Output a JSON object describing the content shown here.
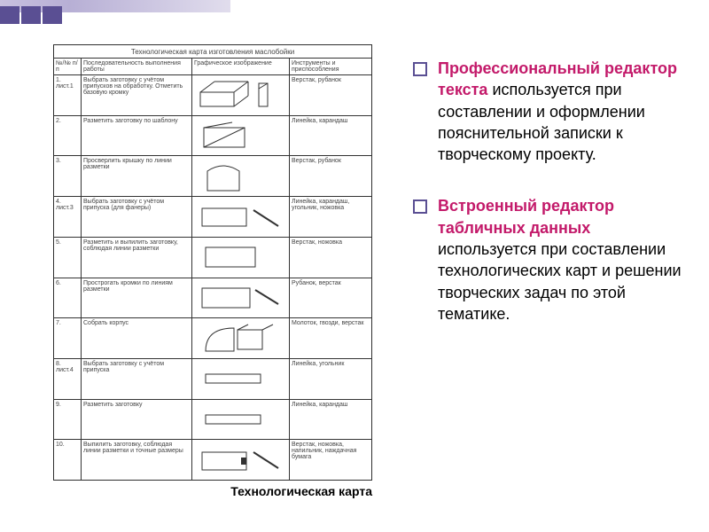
{
  "topbar": {
    "stripe_color": "#c9c2df",
    "block_count": 3,
    "block_color": "#5a4f93"
  },
  "document": {
    "title": "Технологическая карта изготовления маслобойки",
    "header": {
      "num": "№/№ п/п",
      "operation": "Последовательность выполнения работы",
      "graphic": "Графическое изображение",
      "tools": "Инструменты и приспособления"
    },
    "rows": [
      {
        "num": "1.\nлист.1",
        "op": "Выбрать заготовку с учётом припусков на обработку. Отметить базовую кромку",
        "tools": "Верстак, рубанок",
        "gfx": "block-angle"
      },
      {
        "num": "2.",
        "op": "Разметить заготовку по шаблону",
        "tools": "Линейка, карандаш",
        "gfx": "template"
      },
      {
        "num": "3.",
        "op": "Просверлить крышку по линии разметки",
        "tools": "Верстак, рубанок",
        "gfx": "arch"
      },
      {
        "num": "4.\nлист.3",
        "op": "Выбрать заготовку с учётом припуска (для фанеры)",
        "tools": "Линейка, карандаш, угольник, ножовка",
        "gfx": "rect-tool"
      },
      {
        "num": "5.",
        "op": "Разметить и выпилить заготовку, соблюдая линии разметки",
        "tools": "Верстак, ножовка",
        "gfx": "rect"
      },
      {
        "num": "6.",
        "op": "Прострогать кромки по линиям разметки",
        "tools": "Рубанок, верстак",
        "gfx": "rect-tool2"
      },
      {
        "num": "7.",
        "op": "Собрать корпус",
        "tools": "Молоток, гвозди, верстак",
        "gfx": "assembly"
      },
      {
        "num": "8.\nлист.4",
        "op": "Выбрать заготовку с учётом припуска",
        "tools": "Линейка, угольник",
        "gfx": "slim-rect"
      },
      {
        "num": "9.",
        "op": "Разметить заготовку",
        "tools": "Линейка, карандаш",
        "gfx": "slim-rect"
      },
      {
        "num": "10.",
        "op": "Выпилить заготовку, соблюдая линии разметки и точные размеры",
        "tools": "Верстак, ножовка, напильник, наждачная бумага",
        "gfx": "rect-saw"
      }
    ]
  },
  "caption": "Технологическая карта",
  "bullets": [
    {
      "highlight": "Профессиональный редактор текста",
      "rest": " используется при составлении и оформлении пояснительной записки к творческому проекту."
    },
    {
      "highlight": "Встроенный редактор табличных данных",
      "rest": " используется при составлении технологических карт и решении творческих задач по этой тематике."
    }
  ],
  "colors": {
    "accent": "#5a4f93",
    "highlight": "#c31a6a",
    "text": "#000000",
    "border": "#2f2f2f"
  }
}
